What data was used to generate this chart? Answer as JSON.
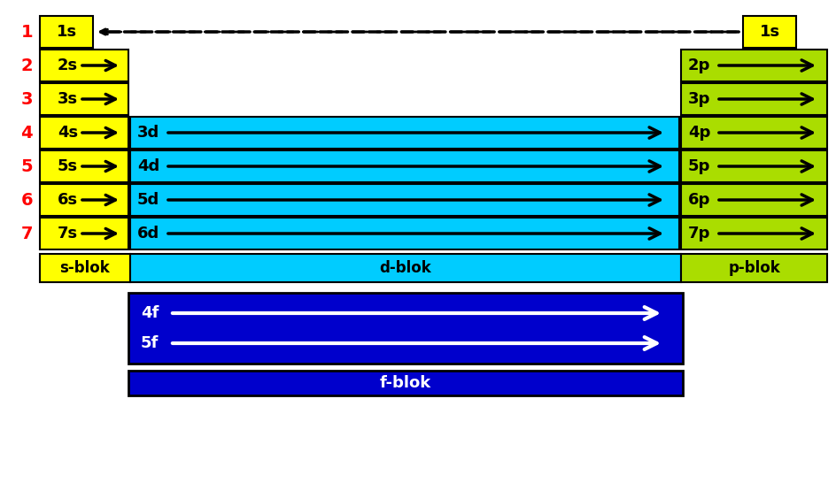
{
  "fig_width": 9.44,
  "fig_height": 5.46,
  "bg_color": "#ffffff",
  "yellow": "#ffff00",
  "cyan": "#00ccff",
  "lime": "#aadd00",
  "blue": "#0000cc",
  "red": "#ff0000",
  "black": "#000000",
  "white": "#ffffff",
  "row_labels": [
    "1",
    "2",
    "3",
    "4",
    "5",
    "6",
    "7"
  ],
  "s_labels": [
    "1s",
    "2s",
    "3s",
    "4s",
    "5s",
    "6s",
    "7s"
  ],
  "d_labels": [
    "3d",
    "4d",
    "5d",
    "6d"
  ],
  "p_labels": [
    "2p",
    "3p",
    "4p",
    "5p",
    "6p",
    "7p"
  ],
  "f_labels": [
    "4f",
    "5f"
  ]
}
